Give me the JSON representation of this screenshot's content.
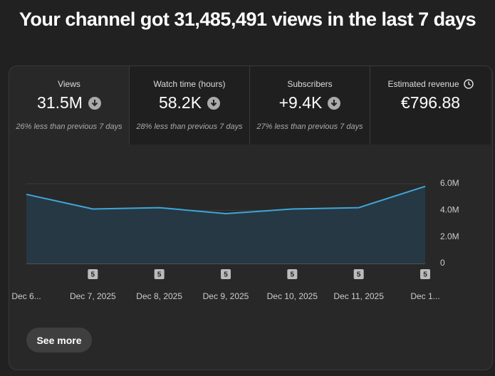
{
  "header": {
    "title": "Your channel got 31,485,491 views in the last 7 days"
  },
  "metrics": [
    {
      "label": "Views",
      "value": "31.5M",
      "note": "26% less than previous 7 days"
    },
    {
      "label": "Watch time (hours)",
      "value": "58.2K",
      "note": "28% less than previous 7 days"
    },
    {
      "label": "Subscribers",
      "value": "+9.4K",
      "note": "27% less than previous 7 days"
    },
    {
      "label": "Estimated revenue",
      "value": "€796.88"
    }
  ],
  "chart_data": {
    "type": "line",
    "categories": [
      "Dec 6...",
      "Dec 7, 2025",
      "Dec 8, 2025",
      "Dec 9, 2025",
      "Dec 10, 2025",
      "Dec 11, 2025",
      "Dec 1..."
    ],
    "markers": [
      null,
      "5",
      "5",
      "5",
      "5",
      "5",
      "5"
    ],
    "series": [
      {
        "name": "Views",
        "color": "#3ea6d8",
        "values": [
          5200000,
          4100000,
          4200000,
          3750000,
          4100000,
          4200000,
          5800000
        ]
      }
    ],
    "ylim": [
      0,
      6000000
    ],
    "yticks": [
      0,
      {
        "value": 2000000,
        "label": "2.0M"
      },
      {
        "value": 4000000,
        "label": "4.0M"
      },
      {
        "value": 6000000,
        "label": "6.0M"
      }
    ],
    "grid": true
  },
  "button": {
    "label": "See more"
  }
}
